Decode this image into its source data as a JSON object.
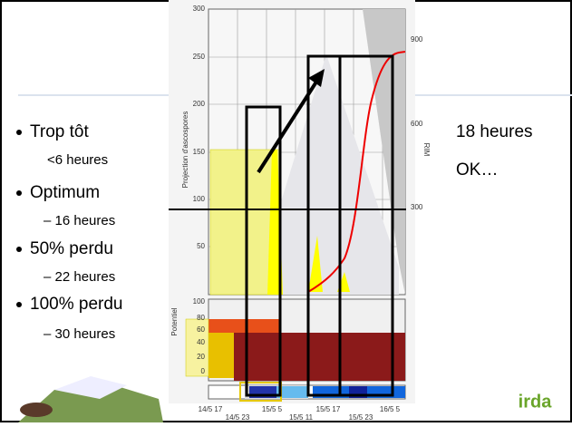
{
  "slide": {
    "bullets": [
      {
        "text": "Trop tôt",
        "sub": "<6 heures"
      },
      {
        "text": "Optimum",
        "sub": "– 16 heures"
      },
      {
        "text": "50% perdu",
        "sub": "– 22 heures"
      },
      {
        "text": "100% perdu",
        "sub": "– 30 heures"
      }
    ],
    "side_note": [
      "18 heures",
      "OK…"
    ],
    "logo": "irda",
    "figure": {
      "y_label": "Projection d'ascospores",
      "y2_label": "RIM",
      "lower_label": "Potentiel",
      "left_ticks": [
        "300",
        "250",
        "200",
        "150",
        "100",
        "50"
      ],
      "right_ticks": [
        "900",
        "600",
        "300"
      ],
      "lower_ticks": [
        "100",
        "80",
        "60",
        "40",
        "20",
        "0"
      ],
      "dates_top": [
        "14/5 17",
        "15/5 5",
        "15/5 17",
        "16/5 5"
      ],
      "dates_bottom": [
        "14/5 23",
        "15/5 11",
        "15/5 23"
      ]
    }
  }
}
